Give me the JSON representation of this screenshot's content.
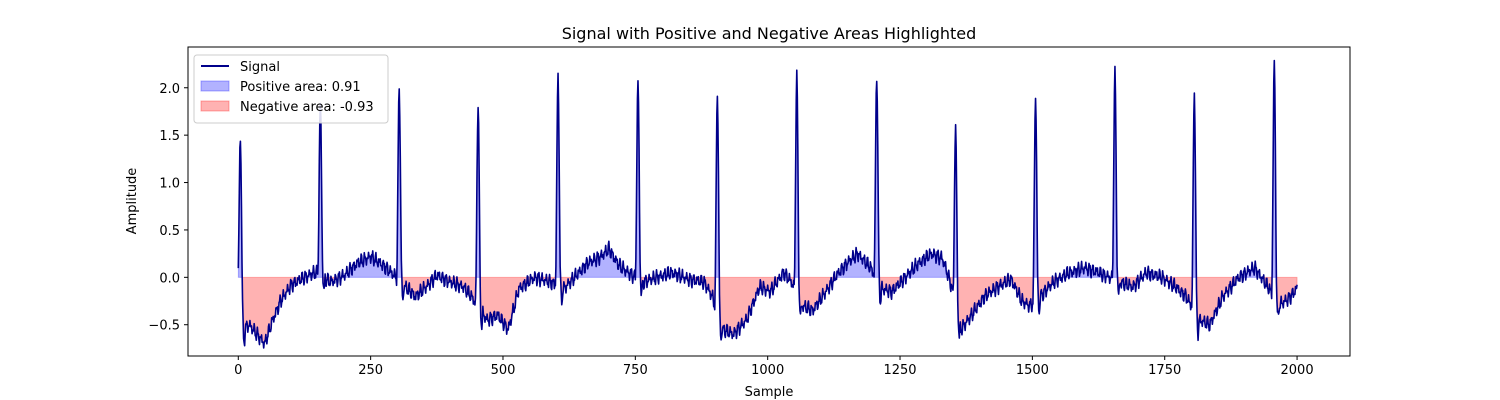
{
  "chart_data": {
    "type": "area",
    "title": "Signal with Positive and Negative Areas Highlighted",
    "xlabel": "Sample",
    "ylabel": "Amplitude",
    "xlim": [
      -95,
      2100
    ],
    "ylim": [
      -0.83,
      2.43
    ],
    "xticks": [
      0,
      250,
      500,
      750,
      1000,
      1250,
      1500,
      1750,
      2000
    ],
    "yticks": [
      -0.5,
      0.0,
      0.5,
      1.0,
      1.5,
      2.0
    ],
    "xtick_labels": [
      "0",
      "250",
      "500",
      "750",
      "1000",
      "1250",
      "1500",
      "1750",
      "2000"
    ],
    "ytick_labels": [
      "−0.5",
      "0.0",
      "0.5",
      "1.0",
      "1.5",
      "2.0"
    ],
    "grid": false,
    "legend": {
      "position": "upper-left",
      "entries": [
        {
          "label": "Signal",
          "kind": "line",
          "color": "#00008b"
        },
        {
          "label": "Positive area: 0.91",
          "kind": "patch",
          "color": "#0000ff"
        },
        {
          "label": "Negative area: -0.93",
          "kind": "patch",
          "color": "#ff0000"
        }
      ]
    },
    "colors": {
      "signal": "#00008b",
      "positive_fill": "#0000ff",
      "negative_fill": "#ff0000"
    },
    "peaks": [
      {
        "x": 4,
        "y": 1.46
      },
      {
        "x": 155,
        "y": 1.82
      },
      {
        "x": 304,
        "y": 2.01
      },
      {
        "x": 453,
        "y": 1.84
      },
      {
        "x": 604,
        "y": 2.11
      },
      {
        "x": 755,
        "y": 2.06
      },
      {
        "x": 905,
        "y": 1.95
      },
      {
        "x": 1055,
        "y": 2.12
      },
      {
        "x": 1206,
        "y": 2.14
      },
      {
        "x": 1355,
        "y": 1.57
      },
      {
        "x": 1506,
        "y": 1.92
      },
      {
        "x": 1656,
        "y": 2.14
      },
      {
        "x": 1806,
        "y": 1.96
      },
      {
        "x": 1957,
        "y": 2.26
      }
    ],
    "series": [
      {
        "name": "Signal",
        "x": [
          0,
          10,
          20,
          35,
          50,
          65,
          80,
          100,
          125,
          145,
          175,
          200,
          225,
          250,
          275,
          295,
          315,
          335,
          355,
          375,
          400,
          425,
          440,
          470,
          490,
          510,
          530,
          560,
          590,
          615,
          635,
          660,
          685,
          700,
          720,
          745,
          765,
          790,
          820,
          850,
          880,
          895,
          915,
          935,
          960,
          985,
          1005,
          1030,
          1045,
          1065,
          1085,
          1110,
          1130,
          1150,
          1170,
          1195,
          1215,
          1235,
          1260,
          1285,
          1310,
          1330,
          1345,
          1365,
          1385,
          1410,
          1435,
          1460,
          1480,
          1495,
          1515,
          1540,
          1570,
          1600,
          1625,
          1645,
          1665,
          1690,
          1715,
          1745,
          1770,
          1790,
          1815,
          1835,
          1860,
          1890,
          1920,
          1945,
          1965,
          1985,
          2000
        ],
        "y": [
          -0.12,
          -0.55,
          -0.5,
          -0.6,
          -0.7,
          -0.45,
          -0.25,
          -0.08,
          0.0,
          0.05,
          -0.05,
          0.02,
          0.15,
          0.22,
          0.12,
          0.02,
          -0.1,
          -0.2,
          -0.1,
          0.02,
          -0.05,
          -0.1,
          -0.2,
          -0.45,
          -0.4,
          -0.55,
          -0.12,
          0.0,
          -0.05,
          -0.12,
          0.0,
          0.15,
          0.22,
          0.3,
          0.12,
          0.02,
          -0.05,
          0.0,
          0.05,
          -0.02,
          -0.05,
          -0.2,
          -0.55,
          -0.6,
          -0.45,
          -0.1,
          -0.15,
          0.05,
          -0.05,
          -0.3,
          -0.35,
          -0.15,
          0.02,
          0.15,
          0.25,
          0.1,
          -0.12,
          -0.15,
          0.0,
          0.15,
          0.25,
          0.2,
          -0.05,
          -0.55,
          -0.4,
          -0.2,
          -0.1,
          -0.02,
          -0.25,
          -0.3,
          -0.2,
          -0.05,
          0.05,
          0.1,
          0.05,
          0.0,
          -0.05,
          -0.1,
          0.05,
          0.0,
          -0.1,
          -0.2,
          -0.45,
          -0.5,
          -0.2,
          0.0,
          0.1,
          -0.1,
          -0.3,
          -0.22,
          -0.12
        ]
      }
    ]
  }
}
